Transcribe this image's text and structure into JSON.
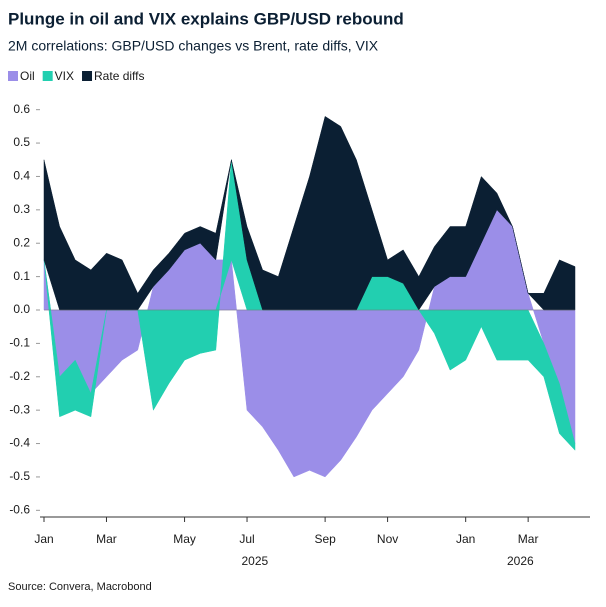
{
  "chart_data": {
    "type": "stacked_area",
    "title": "Plunge in oil and VIX explains GBP/USD rebound",
    "subtitle": "2M correlations: GBP/USD changes vs Brent, rate diffs, VIX",
    "source": "Source: Convera, Macrobond",
    "categories": [
      "Jan",
      null,
      null,
      null,
      "Mar",
      null,
      null,
      null,
      null,
      "May",
      null,
      null,
      null,
      "Jul",
      null,
      null,
      null,
      null,
      "Sep",
      null,
      null,
      null,
      "Nov",
      null,
      null,
      null,
      null,
      "Jan",
      null,
      null,
      null,
      "Mar",
      null,
      null,
      null
    ],
    "years": [
      "2025",
      "2026"
    ],
    "series": [
      {
        "name": "Oil",
        "color": "#9b8ee8",
        "values": [
          0.15,
          -0.2,
          -0.15,
          -0.25,
          -0.2,
          -0.15,
          -0.12,
          0.07,
          0.12,
          0.18,
          0.2,
          0.15,
          0.15,
          -0.3,
          -0.35,
          -0.42,
          -0.5,
          -0.48,
          -0.5,
          -0.45,
          -0.38,
          -0.3,
          -0.25,
          -0.2,
          -0.12,
          0.07,
          0.1,
          0.1,
          0.2,
          0.3,
          0.25,
          0.05,
          -0.1,
          -0.22,
          -0.4
        ]
      },
      {
        "name": "VIX",
        "color": "#22cfb0",
        "values": [
          0,
          -0.12,
          -0.15,
          -0.07,
          0,
          0,
          0,
          -0.3,
          -0.22,
          -0.15,
          -0.13,
          -0.12,
          0.3,
          0.15,
          0,
          0,
          0,
          0,
          0,
          0,
          0,
          0.1,
          0.1,
          0.08,
          0,
          -0.07,
          -0.18,
          -0.15,
          -0.05,
          -0.15,
          -0.15,
          -0.15,
          -0.1,
          -0.15,
          -0.02
        ]
      },
      {
        "name": "Rate diffs",
        "color": "#0b1f33",
        "values": [
          0.3,
          0.25,
          0.15,
          0.12,
          0.17,
          0.15,
          0.05,
          0.05,
          0.05,
          0.05,
          0.05,
          0.08,
          0,
          0.1,
          0.12,
          0.1,
          0.25,
          0.4,
          0.58,
          0.55,
          0.45,
          0.2,
          0.05,
          0.1,
          0.1,
          0.12,
          0.15,
          0.15,
          0.2,
          0.05,
          0,
          0,
          0.05,
          0.15,
          0.13
        ]
      }
    ],
    "ylim": [
      -0.62,
      0.62
    ],
    "yticks": [
      -0.6,
      -0.5,
      -0.4,
      -0.3,
      -0.2,
      -0.1,
      {
        "value": 0,
        "label": "0.0"
      },
      0.1,
      0.2,
      0.3,
      0.4,
      0.5,
      0.6
    ],
    "legend": "top-left"
  }
}
